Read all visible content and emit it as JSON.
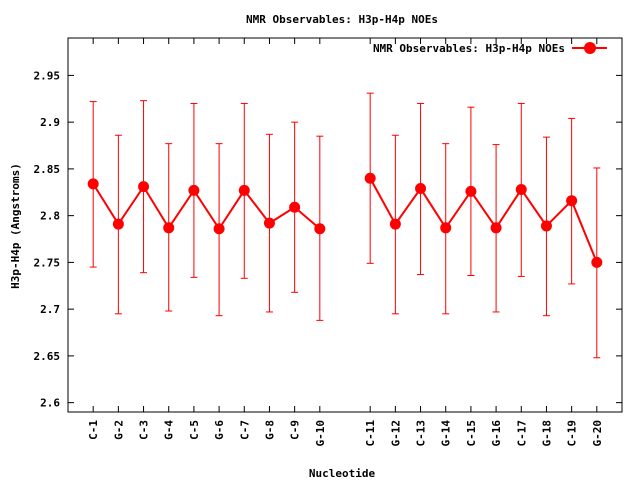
{
  "chart_data": {
    "type": "line",
    "title": "NMR Observables: H3p-H4p NOEs",
    "xlabel": "Nucleotide",
    "ylabel": "H3p-H4p (Angstroms)",
    "ylim": [
      2.59,
      2.99
    ],
    "yticks": [
      2.6,
      2.65,
      2.7,
      2.75,
      2.8,
      2.85,
      2.9,
      2.95
    ],
    "ytick_labels": [
      "2.6",
      "2.65",
      "2.7",
      "2.75",
      "2.8",
      "2.85",
      "2.9",
      "2.95"
    ],
    "grid": false,
    "legend_position": "top-right",
    "color": "#ff0000",
    "categories": [
      "C-1",
      "G-2",
      "C-3",
      "G-4",
      "C-5",
      "G-6",
      "C-7",
      "G-8",
      "C-9",
      "G-10",
      "C-11",
      "G-12",
      "C-13",
      "G-14",
      "C-15",
      "G-16",
      "C-17",
      "G-18",
      "C-19",
      "G-20"
    ],
    "x": [
      1,
      2,
      3,
      4,
      5,
      6,
      7,
      8,
      9,
      10,
      12,
      13,
      14,
      15,
      16,
      17,
      18,
      19,
      20,
      21
    ],
    "segments": [
      [
        0,
        9
      ],
      [
        10,
        19
      ]
    ],
    "series": [
      {
        "name": "NMR Observables: H3p-H4p NOEs",
        "values": [
          2.834,
          2.791,
          2.831,
          2.787,
          2.827,
          2.786,
          2.827,
          2.792,
          2.809,
          2.786,
          2.84,
          2.791,
          2.829,
          2.787,
          2.826,
          2.787,
          2.828,
          2.789,
          2.816,
          2.75
        ],
        "err_high": [
          2.922,
          2.886,
          2.923,
          2.877,
          2.92,
          2.877,
          2.92,
          2.887,
          2.9,
          2.885,
          2.931,
          2.886,
          2.92,
          2.877,
          2.916,
          2.876,
          2.92,
          2.884,
          2.904,
          2.851
        ],
        "err_low": [
          2.745,
          2.695,
          2.739,
          2.698,
          2.734,
          2.693,
          2.733,
          2.697,
          2.718,
          2.688,
          2.749,
          2.695,
          2.737,
          2.695,
          2.736,
          2.697,
          2.735,
          2.693,
          2.727,
          2.648
        ]
      }
    ]
  }
}
